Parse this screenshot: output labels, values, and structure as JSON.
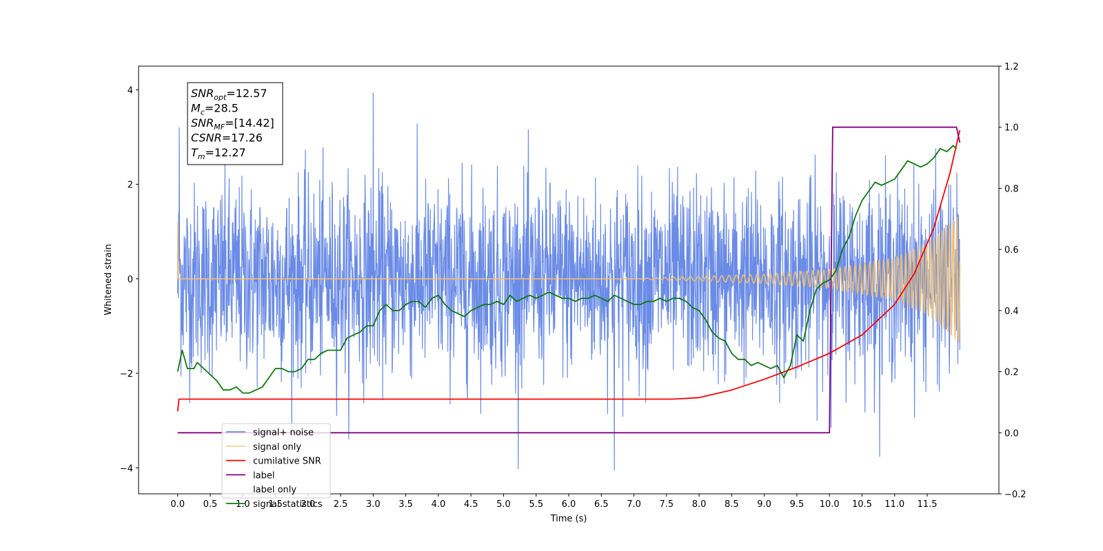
{
  "chart_data": {
    "type": "line",
    "title": "",
    "xlabel": "Time (s)",
    "ylabel_left": "Whitened strain",
    "ylabel_right": "",
    "xlim": [
      -0.6,
      12.6
    ],
    "ylim_left": [
      -4.55,
      4.5
    ],
    "ylim_right": [
      -0.2,
      1.2
    ],
    "x_ticks": [
      0.0,
      0.5,
      1.0,
      1.5,
      2.0,
      2.5,
      3.0,
      3.5,
      4.0,
      4.5,
      5.0,
      5.5,
      6.0,
      6.5,
      7.0,
      7.5,
      8.0,
      8.5,
      9.0,
      9.5,
      10.0,
      10.5,
      11.0,
      11.5
    ],
    "x_tick_labels": [
      "0.0",
      "0.5",
      "1.0",
      "1.5",
      "2.0",
      "2.5",
      "3.0",
      "3.5",
      "4.0",
      "4.5",
      "5.0",
      "5.5",
      "6.0",
      "6.5",
      "7.0",
      "7.5",
      "8.0",
      "8.5",
      "9.0",
      "9.5",
      "10.0",
      "10.5",
      "11.0",
      "11.5"
    ],
    "y_ticks_left": [
      -4,
      -2,
      0,
      2,
      4
    ],
    "y_tick_labels_left": [
      "−4",
      "−2",
      "0",
      "2",
      "4"
    ],
    "y_ticks_right": [
      -0.2,
      0.0,
      0.2,
      0.4,
      0.6,
      0.8,
      1.0,
      1.2
    ],
    "y_tick_labels_right": [
      "−0.2",
      "0.0",
      "0.2",
      "0.4",
      "0.6",
      "0.8",
      "1.0",
      "1.2"
    ],
    "grid": false,
    "legend_position": "lower-left",
    "annotation": {
      "lines": [
        {
          "base": "SNR",
          "sub": "opt",
          "value": "=12.57"
        },
        {
          "base": "M",
          "sub": "c",
          "value": "=28.5"
        },
        {
          "base": "SNR",
          "sub": "MF",
          "value": "=[14.42]"
        },
        {
          "base": "CSNR",
          "sub": "",
          "value": "=17.26"
        },
        {
          "base": "T",
          "sub": "m",
          "value": "=12.27"
        }
      ]
    },
    "series": [
      {
        "name": "signal+ noise",
        "axis": "left",
        "color": "#6a8be6",
        "kind": "noise",
        "x_range": [
          0.0,
          12.0
        ],
        "envelope_sigma": 1.0,
        "max_value": 3.95,
        "min_value": -4.1
      },
      {
        "name": "signal only",
        "axis": "left",
        "color": "#f3c06a",
        "kind": "chirp",
        "x_range": [
          0.0,
          12.0
        ],
        "amplitude_points": [
          [
            7.0,
            0.0
          ],
          [
            7.5,
            0.03
          ],
          [
            8.0,
            0.05
          ],
          [
            9.0,
            0.1
          ],
          [
            10.0,
            0.2
          ],
          [
            11.0,
            0.45
          ],
          [
            11.5,
            0.75
          ],
          [
            12.0,
            1.35
          ]
        ],
        "frequency_start_hz": 4.0,
        "frequency_end_hz": 18.0
      },
      {
        "name": "cumilative SNR",
        "axis": "right",
        "color": "#ff0000",
        "points": [
          [
            0.0,
            0.07
          ],
          [
            0.02,
            0.11
          ],
          [
            2.0,
            0.11
          ],
          [
            4.0,
            0.11
          ],
          [
            6.0,
            0.11
          ],
          [
            7.6,
            0.11
          ],
          [
            8.0,
            0.115
          ],
          [
            8.5,
            0.14
          ],
          [
            9.0,
            0.175
          ],
          [
            9.5,
            0.215
          ],
          [
            10.0,
            0.26
          ],
          [
            10.5,
            0.32
          ],
          [
            11.0,
            0.42
          ],
          [
            11.3,
            0.52
          ],
          [
            11.6,
            0.67
          ],
          [
            11.85,
            0.85
          ],
          [
            12.0,
            0.99
          ]
        ]
      },
      {
        "name": "label",
        "axis": "right",
        "color": "#800080",
        "points": [
          [
            0.0,
            0.0
          ],
          [
            10.0,
            0.0
          ],
          [
            10.05,
            1.0
          ],
          [
            11.95,
            1.0
          ],
          [
            12.0,
            0.95
          ]
        ]
      },
      {
        "name": "label only",
        "axis": "right",
        "color": "#ff8000",
        "hidden_line": true,
        "points": []
      },
      {
        "name": "signal statistics",
        "axis": "right",
        "color": "#117711",
        "points": [
          [
            0.0,
            0.2
          ],
          [
            0.07,
            0.27
          ],
          [
            0.15,
            0.21
          ],
          [
            0.25,
            0.21
          ],
          [
            0.3,
            0.23
          ],
          [
            0.4,
            0.21
          ],
          [
            0.5,
            0.19
          ],
          [
            0.6,
            0.17
          ],
          [
            0.7,
            0.14
          ],
          [
            0.8,
            0.14
          ],
          [
            0.9,
            0.15
          ],
          [
            1.0,
            0.13
          ],
          [
            1.1,
            0.13
          ],
          [
            1.2,
            0.14
          ],
          [
            1.3,
            0.15
          ],
          [
            1.4,
            0.18
          ],
          [
            1.5,
            0.21
          ],
          [
            1.6,
            0.21
          ],
          [
            1.7,
            0.2
          ],
          [
            1.8,
            0.2
          ],
          [
            1.9,
            0.21
          ],
          [
            2.0,
            0.24
          ],
          [
            2.1,
            0.24
          ],
          [
            2.2,
            0.26
          ],
          [
            2.3,
            0.27
          ],
          [
            2.4,
            0.27
          ],
          [
            2.5,
            0.27
          ],
          [
            2.6,
            0.31
          ],
          [
            2.7,
            0.32
          ],
          [
            2.8,
            0.33
          ],
          [
            2.9,
            0.35
          ],
          [
            3.0,
            0.35
          ],
          [
            3.1,
            0.4
          ],
          [
            3.2,
            0.42
          ],
          [
            3.3,
            0.4
          ],
          [
            3.4,
            0.4
          ],
          [
            3.5,
            0.42
          ],
          [
            3.6,
            0.43
          ],
          [
            3.7,
            0.43
          ],
          [
            3.8,
            0.41
          ],
          [
            3.9,
            0.44
          ],
          [
            4.0,
            0.45
          ],
          [
            4.1,
            0.42
          ],
          [
            4.2,
            0.4
          ],
          [
            4.3,
            0.39
          ],
          [
            4.4,
            0.38
          ],
          [
            4.5,
            0.4
          ],
          [
            4.6,
            0.41
          ],
          [
            4.7,
            0.42
          ],
          [
            4.8,
            0.42
          ],
          [
            4.9,
            0.43
          ],
          [
            5.0,
            0.42
          ],
          [
            5.1,
            0.45
          ],
          [
            5.2,
            0.43
          ],
          [
            5.3,
            0.44
          ],
          [
            5.4,
            0.45
          ],
          [
            5.5,
            0.44
          ],
          [
            5.6,
            0.45
          ],
          [
            5.7,
            0.46
          ],
          [
            5.8,
            0.45
          ],
          [
            5.9,
            0.44
          ],
          [
            6.0,
            0.44
          ],
          [
            6.1,
            0.43
          ],
          [
            6.2,
            0.44
          ],
          [
            6.3,
            0.44
          ],
          [
            6.4,
            0.45
          ],
          [
            6.5,
            0.44
          ],
          [
            6.6,
            0.43
          ],
          [
            6.7,
            0.45
          ],
          [
            6.8,
            0.44
          ],
          [
            6.9,
            0.43
          ],
          [
            7.0,
            0.42
          ],
          [
            7.1,
            0.42
          ],
          [
            7.2,
            0.43
          ],
          [
            7.3,
            0.43
          ],
          [
            7.4,
            0.44
          ],
          [
            7.5,
            0.43
          ],
          [
            7.6,
            0.44
          ],
          [
            7.7,
            0.44
          ],
          [
            7.8,
            0.43
          ],
          [
            7.9,
            0.41
          ],
          [
            8.0,
            0.4
          ],
          [
            8.1,
            0.37
          ],
          [
            8.2,
            0.33
          ],
          [
            8.3,
            0.31
          ],
          [
            8.4,
            0.3
          ],
          [
            8.5,
            0.26
          ],
          [
            8.6,
            0.24
          ],
          [
            8.7,
            0.24
          ],
          [
            8.8,
            0.22
          ],
          [
            8.9,
            0.23
          ],
          [
            9.0,
            0.22
          ],
          [
            9.1,
            0.21
          ],
          [
            9.2,
            0.22
          ],
          [
            9.3,
            0.18
          ],
          [
            9.4,
            0.22
          ],
          [
            9.5,
            0.32
          ],
          [
            9.6,
            0.3
          ],
          [
            9.7,
            0.4
          ],
          [
            9.8,
            0.47
          ],
          [
            9.9,
            0.49
          ],
          [
            10.0,
            0.5
          ],
          [
            10.1,
            0.53
          ],
          [
            10.2,
            0.6
          ],
          [
            10.3,
            0.64
          ],
          [
            10.4,
            0.71
          ],
          [
            10.5,
            0.76
          ],
          [
            10.6,
            0.79
          ],
          [
            10.7,
            0.82
          ],
          [
            10.8,
            0.81
          ],
          [
            10.9,
            0.82
          ],
          [
            11.0,
            0.83
          ],
          [
            11.1,
            0.86
          ],
          [
            11.2,
            0.89
          ],
          [
            11.3,
            0.88
          ],
          [
            11.4,
            0.87
          ],
          [
            11.5,
            0.88
          ],
          [
            11.6,
            0.9
          ],
          [
            11.7,
            0.93
          ],
          [
            11.8,
            0.92
          ],
          [
            11.9,
            0.94
          ],
          [
            11.95,
            0.93
          ]
        ]
      }
    ]
  }
}
